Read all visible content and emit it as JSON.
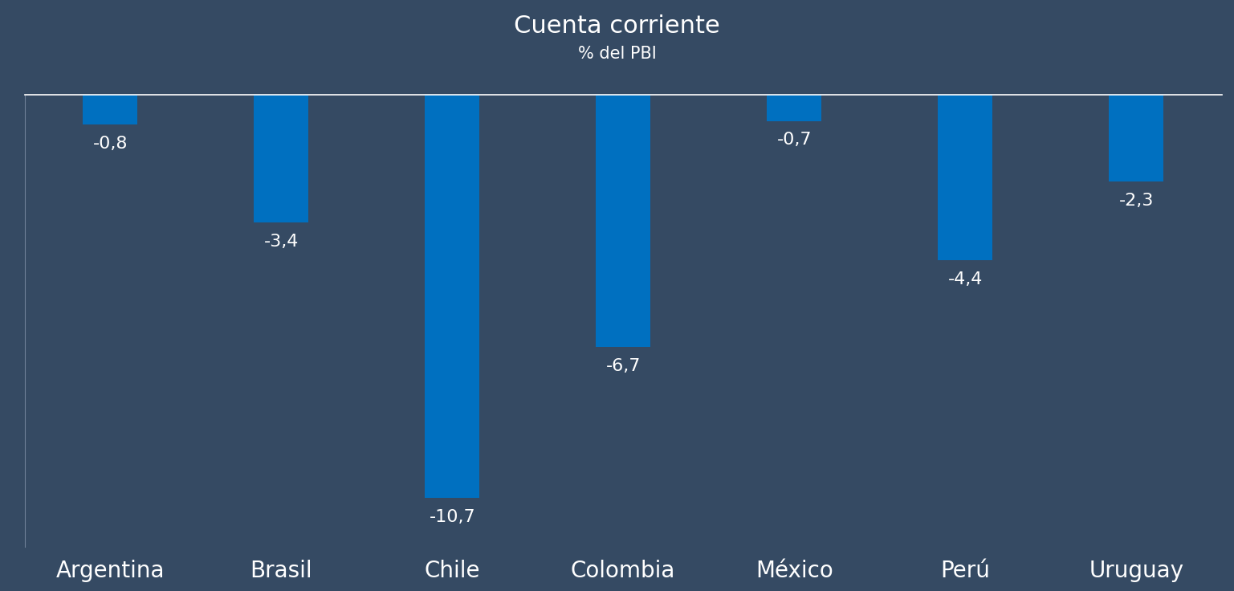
{
  "chart_data": {
    "type": "bar",
    "title": "Cuenta corriente",
    "subtitle": "% del PBI",
    "categories": [
      "Argentina",
      "Brasil",
      "Chile",
      "Colombia",
      "México",
      "Perú",
      "Uruguay"
    ],
    "values": [
      -0.8,
      -3.4,
      -10.7,
      -6.7,
      -0.7,
      -4.4,
      -2.3
    ],
    "value_labels": [
      "-0,8",
      "-3,4",
      "-10,7",
      "-6,7",
      "-0,7",
      "-4,4",
      "-2,3"
    ],
    "color": "#0070c0",
    "ylim": [
      -12,
      0
    ],
    "yticks": [],
    "grid": false,
    "data_labels": true,
    "tick_labels": "x"
  }
}
